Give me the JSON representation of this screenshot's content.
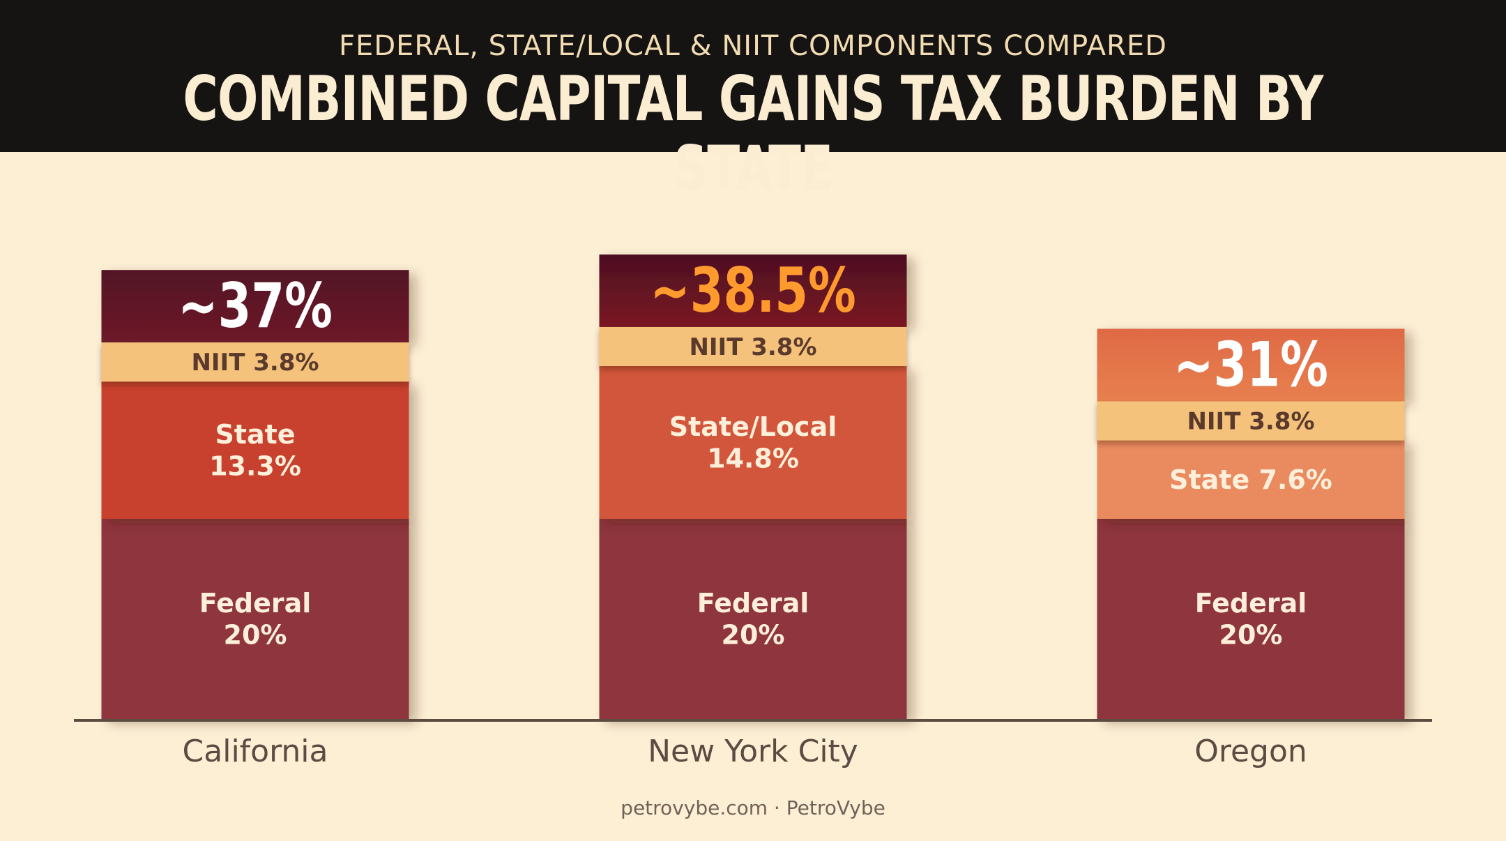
{
  "header": {
    "subtitle": "FEDERAL, STATE/LOCAL & NIIT COMPONENTS COMPARED",
    "title": "COMBINED CAPITAL GAINS TAX BURDEN BY STATE"
  },
  "footer": "petrovybe.com · PetroVybe",
  "chart_data": {
    "type": "bar",
    "stacked": true,
    "categories": [
      "California",
      "New York City",
      "Oregon"
    ],
    "series": [
      {
        "name": "Federal",
        "values": [
          20,
          20,
          20
        ],
        "labels": [
          "Federal\n20%",
          "Federal\n20%",
          "Federal\n20%"
        ],
        "color": "#8e343c"
      },
      {
        "name": "State",
        "values": [
          13.3,
          14.8,
          7.6
        ],
        "labels": [
          "State\n13.3%",
          "State/Local\n14.8%",
          "State 7.6%"
        ],
        "colors": [
          "#c8412e",
          "#d2573a",
          "#e98a5e"
        ]
      },
      {
        "name": "NIIT",
        "values": [
          3.8,
          3.8,
          3.8
        ],
        "labels": [
          "NIIT 3.8%",
          "NIIT 3.8%",
          "NIIT 3.8%"
        ],
        "color": "#f5c27c"
      }
    ],
    "totals": [
      37,
      38.5,
      31
    ],
    "total_labels": [
      "~37%",
      "~38.5%",
      "~31%"
    ],
    "total_label_colors": [
      "#ffffff",
      "#ff9a2e",
      "#ffffff"
    ],
    "cap_colors": [
      [
        "#521425",
        "#6e1a29"
      ],
      [
        "#4d0f20",
        "#7a1824"
      ],
      [
        "#df6a45",
        "#e8804f"
      ]
    ],
    "colors": {
      "axis": "#5c4b3f",
      "category_label": "#5a4c42",
      "segment_text": "#fdefd9",
      "niit_text": "#5a3a2c"
    }
  }
}
